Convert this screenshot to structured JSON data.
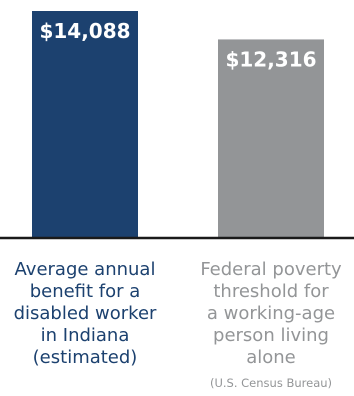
{
  "chart_data": {
    "type": "bar",
    "categories": [
      "Average annual benefit for a disabled worker in Indiana (estimated)",
      "Federal poverty threshold for a working-age person living alone"
    ],
    "category_lines": [
      [
        "Average annual",
        "benefit for a",
        "disabled worker",
        "in Indiana",
        "(estimated)"
      ],
      [
        "Federal poverty",
        "threshold for",
        "a working-age",
        "person living",
        "alone"
      ]
    ],
    "category_notes": [
      "",
      "(U.S. Census Bureau)"
    ],
    "values": [
      14088,
      12316
    ],
    "value_labels": [
      "$14,088",
      "$12,316"
    ],
    "ylim": [
      0,
      14088
    ],
    "grid": false,
    "colors": [
      "#1c416f",
      "#939597"
    ],
    "label_colors": [
      "#1c416f",
      "#939597"
    ],
    "title": "",
    "xlabel": "",
    "ylabel": ""
  }
}
